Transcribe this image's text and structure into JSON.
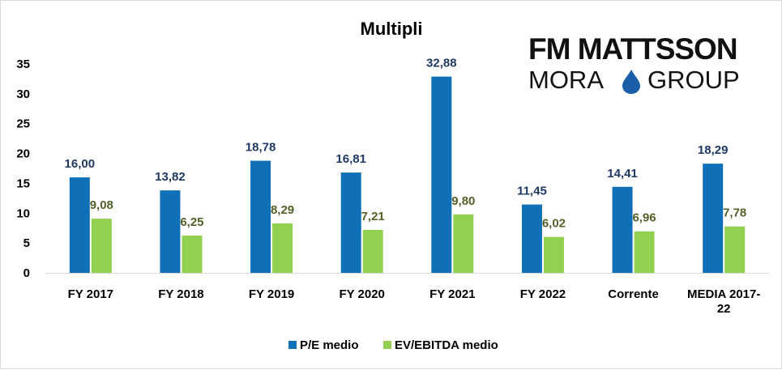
{
  "logo": {
    "line1": "FM MATTSSON",
    "line2_left": "MORA",
    "line2_right": "GROUP",
    "drop_icon": "water-drop-icon",
    "drop_color": "#1a5fa8"
  },
  "colors": {
    "series_1": "#0f70b7",
    "series_2": "#92d050",
    "label_1": "#1f3864",
    "label_2": "#4f6228"
  },
  "chart_data": {
    "type": "bar",
    "title": "Multipli",
    "categories": [
      "FY 2017",
      "FY 2018",
      "FY 2019",
      "FY 2020",
      "FY 2021",
      "FY 2022",
      "Corrente",
      "MEDIA 2017-22"
    ],
    "category_lines": [
      [
        "FY 2017"
      ],
      [
        "FY 2018"
      ],
      [
        "FY 2019"
      ],
      [
        "FY 2020"
      ],
      [
        "FY 2021"
      ],
      [
        "FY 2022"
      ],
      [
        "Corrente"
      ],
      [
        "MEDIA 2017-",
        "22"
      ]
    ],
    "series": [
      {
        "name": "P/E medio",
        "values": [
          16.0,
          13.82,
          18.78,
          16.81,
          32.88,
          11.45,
          14.41,
          18.29
        ],
        "labels": [
          "16,00",
          "13,82",
          "18,78",
          "16,81",
          "32,88",
          "11,45",
          "14,41",
          "18,29"
        ]
      },
      {
        "name": "EV/EBITDA medio",
        "values": [
          9.08,
          6.25,
          8.29,
          7.21,
          9.8,
          6.02,
          6.96,
          7.78
        ],
        "labels": [
          "9,08",
          "6,25",
          "8,29",
          "7,21",
          "9,80",
          "6,02",
          "6,96",
          "7,78"
        ]
      }
    ],
    "ylim": [
      0,
      35
    ],
    "yticks": [
      0,
      5,
      10,
      15,
      20,
      25,
      30,
      35
    ],
    "grid": false,
    "legend": "bottom",
    "xlabel": "",
    "ylabel": ""
  }
}
